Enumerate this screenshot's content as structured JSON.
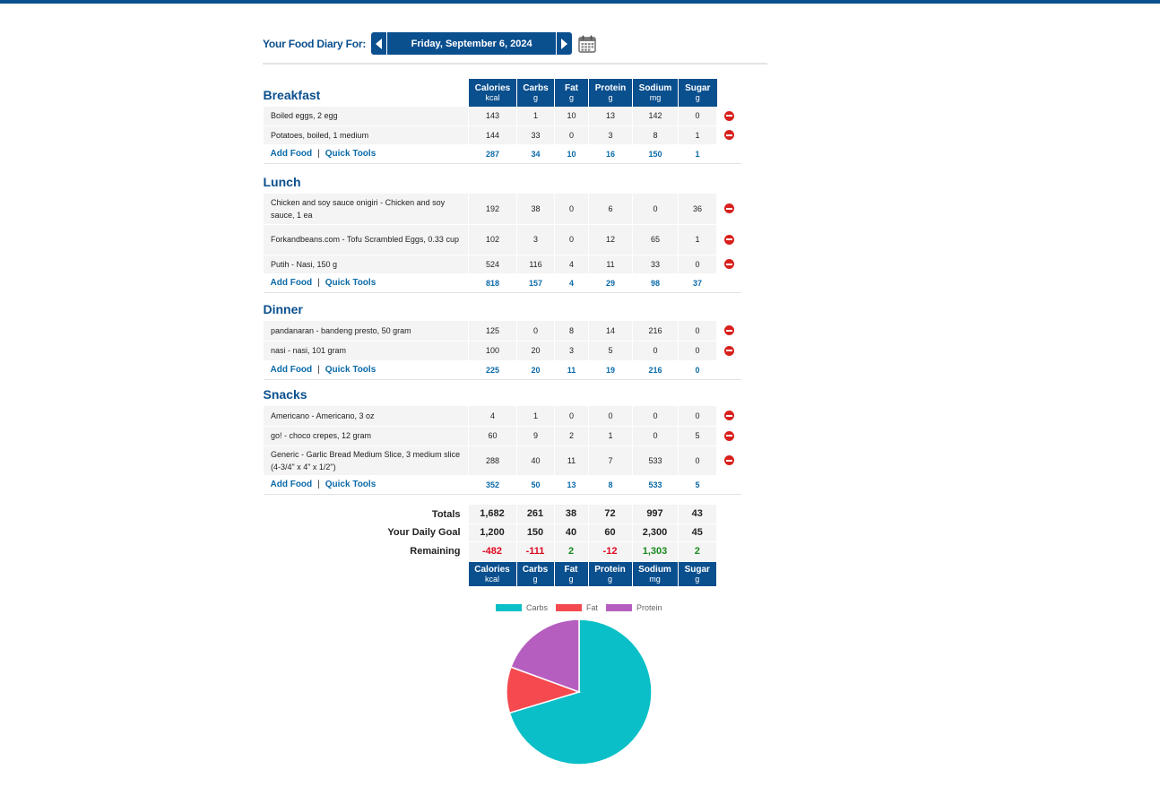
{
  "header": {
    "label": "Your Food Diary For:",
    "date": "Friday, September 6, 2024"
  },
  "columns": [
    {
      "name": "Calories",
      "unit": "kcal"
    },
    {
      "name": "Carbs",
      "unit": "g"
    },
    {
      "name": "Fat",
      "unit": "g"
    },
    {
      "name": "Protein",
      "unit": "g"
    },
    {
      "name": "Sodium",
      "unit": "mg"
    },
    {
      "name": "Sugar",
      "unit": "g"
    }
  ],
  "links": {
    "add_food": "Add Food",
    "quick_tools": "Quick Tools",
    "separator": "|"
  },
  "meals": [
    {
      "name": "Breakfast",
      "foods": [
        {
          "name": "Boiled eggs, 2 egg",
          "values": [
            "143",
            "1",
            "10",
            "13",
            "142",
            "0"
          ]
        },
        {
          "name": "Potatoes, boiled, 1 medium",
          "values": [
            "144",
            "33",
            "0",
            "3",
            "8",
            "1"
          ]
        }
      ],
      "totals": [
        "287",
        "34",
        "10",
        "16",
        "150",
        "1"
      ]
    },
    {
      "name": "Lunch",
      "foods": [
        {
          "name": "Chicken and soy sauce onigiri - Chicken and soy sauce, 1 ea",
          "values": [
            "192",
            "38",
            "0",
            "6",
            "0",
            "36"
          ]
        },
        {
          "name": "Forkandbeans.com - Tofu Scrambled Eggs, 0.33 cup",
          "values": [
            "102",
            "3",
            "0",
            "12",
            "65",
            "1"
          ]
        },
        {
          "name": "Putih - Nasi, 150 g",
          "values": [
            "524",
            "116",
            "4",
            "11",
            "33",
            "0"
          ]
        }
      ],
      "totals": [
        "818",
        "157",
        "4",
        "29",
        "98",
        "37"
      ]
    },
    {
      "name": "Dinner",
      "foods": [
        {
          "name": "pandanaran - bandeng presto, 50 gram",
          "values": [
            "125",
            "0",
            "8",
            "14",
            "216",
            "0"
          ]
        },
        {
          "name": "nasi - nasi, 101 gram",
          "values": [
            "100",
            "20",
            "3",
            "5",
            "0",
            "0"
          ]
        }
      ],
      "totals": [
        "225",
        "20",
        "11",
        "19",
        "216",
        "0"
      ]
    },
    {
      "name": "Snacks",
      "foods": [
        {
          "name": "Americano - Americano, 3 oz",
          "values": [
            "4",
            "1",
            "0",
            "0",
            "0",
            "0"
          ]
        },
        {
          "name": "go! - choco crepes, 12 gram",
          "values": [
            "60",
            "9",
            "2",
            "1",
            "0",
            "5"
          ]
        },
        {
          "name": "Generic - Garlic Bread Medium Slice, 3 medium slice (4-3/4\" x 4\" x 1/2\")",
          "values": [
            "288",
            "40",
            "11",
            "7",
            "533",
            "0"
          ]
        }
      ],
      "totals": [
        "352",
        "50",
        "13",
        "8",
        "533",
        "5"
      ]
    }
  ],
  "summary": {
    "totals_label": "Totals",
    "totals": [
      "1,682",
      "261",
      "38",
      "72",
      "997",
      "43"
    ],
    "goal_label": "Your Daily Goal",
    "goal": [
      "1,200",
      "150",
      "40",
      "60",
      "2,300",
      "45"
    ],
    "remaining_label": "Remaining",
    "remaining": [
      "-482",
      "-111",
      "2",
      "-12",
      "1,303",
      "2"
    ]
  },
  "chart_data": {
    "type": "pie",
    "labels": [
      "Carbs",
      "Fat",
      "Protein"
    ],
    "values": [
      261,
      38,
      72
    ],
    "colors": [
      "#0bbfc8",
      "#f44a4f",
      "#b65ec0"
    ],
    "legend": "top"
  }
}
